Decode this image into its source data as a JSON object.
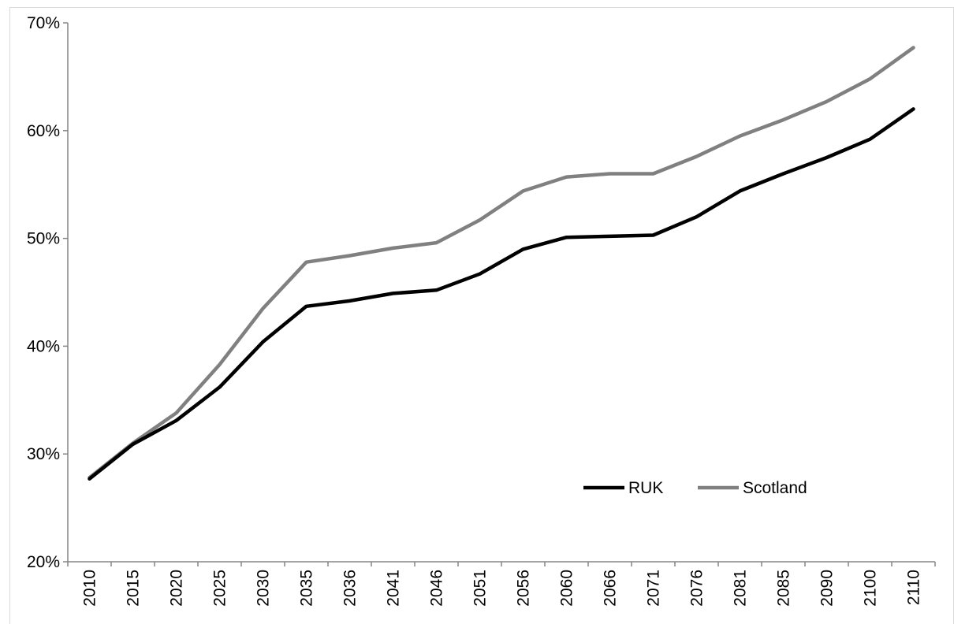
{
  "chart_data": {
    "type": "line",
    "title": "",
    "xlabel": "",
    "ylabel": "",
    "categories": [
      "2010",
      "2015",
      "2020",
      "2025",
      "2030",
      "2035",
      "2036",
      "2041",
      "2046",
      "2051",
      "2056",
      "2060",
      "2066",
      "2071",
      "2076",
      "2081",
      "2085",
      "2090",
      "2100",
      "2110"
    ],
    "ylim": [
      0.2,
      0.7
    ],
    "y_ticks": [
      "20%",
      "30%",
      "40%",
      "50%",
      "60%",
      "70%"
    ],
    "y_tick_values": [
      0.2,
      0.3,
      0.4,
      0.5,
      0.6,
      0.7
    ],
    "grid": false,
    "legend_position": "bottom-right",
    "series": [
      {
        "name": "RUK",
        "color": "#000000",
        "values": [
          0.277,
          0.309,
          0.331,
          0.362,
          0.404,
          0.437,
          0.442,
          0.449,
          0.452,
          0.467,
          0.49,
          0.501,
          0.502,
          0.503,
          0.52,
          0.544,
          0.56,
          0.575,
          0.592,
          0.62
        ]
      },
      {
        "name": "Scotland",
        "color": "#808080",
        "values": [
          0.278,
          0.31,
          0.338,
          0.383,
          0.435,
          0.478,
          0.484,
          0.491,
          0.496,
          0.517,
          0.544,
          0.557,
          0.56,
          0.56,
          0.576,
          0.595,
          0.61,
          0.627,
          0.648,
          0.677
        ]
      }
    ]
  }
}
